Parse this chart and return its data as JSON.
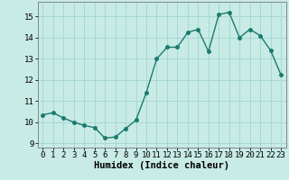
{
  "x": [
    0,
    1,
    2,
    3,
    4,
    5,
    6,
    7,
    8,
    9,
    10,
    11,
    12,
    13,
    14,
    15,
    16,
    17,
    18,
    19,
    20,
    21,
    22,
    23
  ],
  "y": [
    10.35,
    10.45,
    10.2,
    10.0,
    9.85,
    9.75,
    9.25,
    9.3,
    9.7,
    10.1,
    11.4,
    13.0,
    13.55,
    13.55,
    14.25,
    14.4,
    13.35,
    15.1,
    15.2,
    14.0,
    14.4,
    14.1,
    13.4,
    12.25
  ],
  "line_color": "#1a7a6e",
  "marker_color": "#1a7a6e",
  "bg_color": "#c8ebe6",
  "grid_color": "#a8d8d2",
  "xlabel": "Humidex (Indice chaleur)",
  "xlim": [
    -0.5,
    23.5
  ],
  "ylim": [
    8.8,
    15.7
  ],
  "yticks": [
    9,
    10,
    11,
    12,
    13,
    14,
    15
  ],
  "xticks": [
    0,
    1,
    2,
    3,
    4,
    5,
    6,
    7,
    8,
    9,
    10,
    11,
    12,
    13,
    14,
    15,
    16,
    17,
    18,
    19,
    20,
    21,
    22,
    23
  ],
  "tick_fontsize": 6.5,
  "xlabel_fontsize": 7.5,
  "marker_size": 2.5,
  "line_width": 1.0
}
